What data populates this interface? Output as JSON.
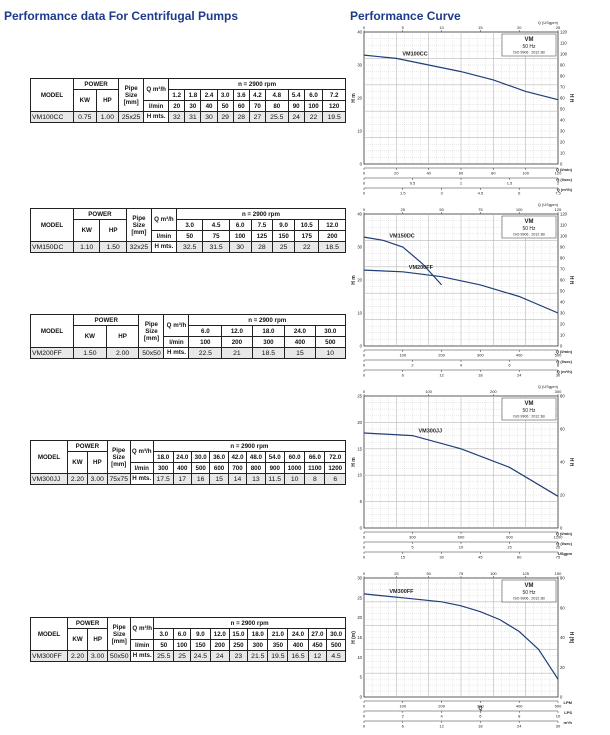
{
  "headings": {
    "left": "Performance data For Centrifugal Pumps",
    "right": "Performance Curve"
  },
  "tables": [
    {
      "header": {
        "model": "MODEL",
        "power": "POWER",
        "kw": "KW",
        "hp": "HP",
        "pipe": "Pipe Size [mm]",
        "q": "Q m³/h",
        "lmin": "l/min",
        "h": "H mts.",
        "rpm": "n = 2900 rpm"
      },
      "q_m3h": [
        "1.2",
        "1.8",
        "2.4",
        "3.0",
        "3.6",
        "4.2",
        "4.8",
        "5.4",
        "6.0",
        "7.2"
      ],
      "lmin": [
        "20",
        "30",
        "40",
        "50",
        "60",
        "70",
        "80",
        "90",
        "100",
        "120"
      ],
      "row": {
        "model": "VM100CC",
        "kw": "0.75",
        "hp": "1.00",
        "pipe": "25x25",
        "h": [
          "32",
          "31",
          "30",
          "29",
          "28",
          "27",
          "25.5",
          "24",
          "22",
          "19.5"
        ]
      }
    },
    {
      "header": {
        "model": "MODEL",
        "power": "POWER",
        "kw": "KW",
        "hp": "HP",
        "pipe": "Pipe Size [mm]",
        "q": "Q m³/h",
        "lmin": "l/min",
        "h": "H mts.",
        "rpm": "n = 2900 rpm"
      },
      "q_m3h": [
        "3.0",
        "4.5",
        "6.0",
        "7.5",
        "9.0",
        "10.5",
        "12.0"
      ],
      "lmin": [
        "50",
        "75",
        "100",
        "125",
        "150",
        "175",
        "200"
      ],
      "row": {
        "model": "VM150DC",
        "kw": "1.10",
        "hp": "1.50",
        "pipe": "32x25",
        "h": [
          "32.5",
          "31.5",
          "30",
          "28",
          "25",
          "22",
          "18.5"
        ]
      }
    },
    {
      "header": {
        "model": "MODEL",
        "power": "POWER",
        "kw": "KW",
        "hp": "HP",
        "pipe": "Pipe Size [mm]",
        "q": "Q m³/h",
        "lmin": "l/min",
        "h": "H mts.",
        "rpm": "n = 2900 rpm"
      },
      "q_m3h": [
        "6.0",
        "12.0",
        "18.0",
        "24.0",
        "30.0"
      ],
      "lmin": [
        "100",
        "200",
        "300",
        "400",
        "500"
      ],
      "row": {
        "model": "VM200FF",
        "kw": "1.50",
        "hp": "2.00",
        "pipe": "50x50",
        "h": [
          "22.5",
          "21",
          "18.5",
          "15",
          "10"
        ]
      }
    },
    {
      "header": {
        "model": "MODEL",
        "power": "POWER",
        "kw": "KW",
        "hp": "HP",
        "pipe": "Pipe Size [mm]",
        "q": "Q m³/h",
        "lmin": "l/min",
        "h": "H mts.",
        "rpm": "n = 2900 rpm"
      },
      "q_m3h": [
        "18.0",
        "24.0",
        "30.0",
        "36.0",
        "42.0",
        "48.0",
        "54.0",
        "60.0",
        "66.0",
        "72.0"
      ],
      "lmin": [
        "300",
        "400",
        "500",
        "600",
        "700",
        "800",
        "900",
        "1000",
        "1100",
        "1200"
      ],
      "row": {
        "model": "VM300JJ",
        "kw": "2.20",
        "hp": "3.00",
        "pipe": "75x75",
        "h": [
          "17.5",
          "17",
          "16",
          "15",
          "14",
          "13",
          "11.5",
          "10",
          "8",
          "6"
        ]
      }
    },
    {
      "header": {
        "model": "MODEL",
        "power": "POWER",
        "kw": "KW",
        "hp": "HP",
        "pipe": "Pipe Size [mm]",
        "q": "Q m³/h",
        "lmin": "l/min",
        "h": "H mts.",
        "rpm": "n = 2900 rpm"
      },
      "q_m3h": [
        "3.0",
        "6.0",
        "9.0",
        "12.0",
        "15.0",
        "18.0",
        "21.0",
        "24.0",
        "27.0",
        "30.0"
      ],
      "lmin": [
        "50",
        "100",
        "150",
        "200",
        "250",
        "300",
        "350",
        "400",
        "450",
        "500"
      ],
      "row": {
        "model": "VM300FF",
        "kw": "2.20",
        "hp": "3.00",
        "pipe": "50x50",
        "h": [
          "25.5",
          "25",
          "24.5",
          "24",
          "23",
          "21.5",
          "19.5",
          "16.5",
          "12",
          "4.5"
        ]
      }
    }
  ],
  "chart_data": [
    {
      "type": "line",
      "legend": {
        "brand": "VM",
        "hz": "50 Hz",
        "iso": "ISO 9906 : 2012 3B"
      },
      "ylabel": "H m",
      "ylabel_right": "H ft",
      "top_axis_label": "Q (USgpm)",
      "ylim": [
        0,
        40
      ],
      "xlim": [
        0,
        120
      ],
      "yticks": [
        "0",
        "10",
        "20",
        "30",
        "40"
      ],
      "yticks_right": [
        "0",
        "10",
        "20",
        "30",
        "40",
        "50",
        "60",
        "70",
        "80",
        "90",
        "100",
        "110",
        "120"
      ],
      "top_ticks": [
        "0",
        "5",
        "10",
        "15",
        "20",
        "25"
      ],
      "bottom_rows": [
        {
          "label": "Q (l/min)",
          "ticks": [
            "0",
            "20",
            "40",
            "60",
            "80",
            "100",
            "120"
          ]
        },
        {
          "label": "Q (l/sec)",
          "ticks": [
            "0",
            "0.5",
            "1",
            "1.5",
            "2"
          ]
        },
        {
          "label": "Q (m³/h)",
          "ticks": [
            "0",
            "1.5",
            "3",
            "4.5",
            "6",
            "7.5"
          ]
        }
      ],
      "series": [
        {
          "name": "VM100CC",
          "x": [
            0,
            20,
            40,
            60,
            80,
            100,
            120
          ],
          "y": [
            33,
            32,
            30,
            28,
            25.5,
            22,
            19.5
          ]
        }
      ]
    },
    {
      "type": "line",
      "legend": {
        "brand": "VM",
        "hz": "50 Hz",
        "iso": "ISO 9906 : 2012 3B"
      },
      "ylabel": "H m",
      "ylabel_right": "H ft",
      "top_axis_label": "Q (USgpm)",
      "ylim": [
        0,
        40
      ],
      "xlim": [
        0,
        500
      ],
      "yticks": [
        "0",
        "10",
        "20",
        "30",
        "40"
      ],
      "yticks_right": [
        "0",
        "10",
        "20",
        "30",
        "40",
        "50",
        "60",
        "70",
        "80",
        "90",
        "100",
        "110",
        "120"
      ],
      "top_ticks": [
        "0",
        "25",
        "50",
        "75",
        "100",
        "125"
      ],
      "bottom_rows": [
        {
          "label": "Q (l/min)",
          "ticks": [
            "0",
            "100",
            "200",
            "300",
            "400",
            "500"
          ]
        },
        {
          "label": "Q (l/sec)",
          "ticks": [
            "0",
            "2",
            "4",
            "6",
            "8"
          ]
        },
        {
          "label": "Q (m³/h)",
          "ticks": [
            "0",
            "6",
            "12",
            "18",
            "24",
            "30"
          ]
        }
      ],
      "series": [
        {
          "name": "VM150DC",
          "x": [
            0,
            50,
            100,
            150,
            200
          ],
          "y": [
            33,
            32,
            30,
            25,
            18.5
          ]
        },
        {
          "name": "VM200FF",
          "x": [
            0,
            100,
            200,
            300,
            400,
            500
          ],
          "y": [
            23,
            22.5,
            21,
            18.5,
            15,
            10
          ]
        }
      ]
    },
    {
      "type": "line",
      "legend": {
        "brand": "VM",
        "hz": "50 Hz",
        "iso": "ISO 9906 : 2012 3B"
      },
      "ylabel": "H m",
      "ylabel_right": "H ft",
      "top_axis_label": "Q (USgpm)",
      "ylim": [
        0,
        25
      ],
      "xlim": [
        0,
        1200
      ],
      "yticks": [
        "0",
        "5",
        "10",
        "15",
        "20",
        "25"
      ],
      "yticks_right": [
        "0",
        "20",
        "40",
        "60",
        "80"
      ],
      "top_ticks": [
        "0",
        "100",
        "200",
        "300"
      ],
      "bottom_rows": [
        {
          "label": "Q (l/min)",
          "ticks": [
            "0",
            "300",
            "600",
            "900",
            "1200"
          ]
        },
        {
          "label": "Q (l/sec)",
          "ticks": [
            "0",
            "5",
            "10",
            "15",
            "20"
          ]
        },
        {
          "label": "USgpm",
          "ticks": [
            "0",
            "15",
            "30",
            "45",
            "60",
            "75"
          ]
        }
      ],
      "series": [
        {
          "name": "VM300JJ",
          "x": [
            0,
            300,
            600,
            900,
            1200
          ],
          "y": [
            18,
            17.5,
            15,
            11.5,
            6
          ]
        }
      ]
    },
    {
      "type": "line",
      "legend": {
        "brand": "VM",
        "hz": "50 Hz",
        "iso": "ISO 9906 : 2012 3B"
      },
      "ylabel": "H (m)",
      "ylabel_right": "H (ft)",
      "top_axis_label": "",
      "ylim": [
        0,
        30
      ],
      "xlim": [
        0,
        500
      ],
      "yticks": [
        "0",
        "5",
        "10",
        "15",
        "20",
        "25",
        "30"
      ],
      "yticks_right": [
        "0",
        "20",
        "40",
        "60",
        "80"
      ],
      "top_ticks": [
        "0",
        "25",
        "50",
        "75",
        "100",
        "125",
        "150"
      ],
      "bottom_rows": [
        {
          "label": "LPM",
          "ticks": [
            "0",
            "100",
            "200",
            "300",
            "400",
            "500"
          ]
        },
        {
          "label": "LPS",
          "ticks": [
            "0",
            "2",
            "4",
            "6",
            "8",
            "10"
          ]
        },
        {
          "label": "m³/h",
          "ticks": [
            "0",
            "6",
            "12",
            "18",
            "24",
            "30"
          ]
        }
      ],
      "mid_axis_label": "Q",
      "series": [
        {
          "name": "VM300FF",
          "x": [
            0,
            50,
            100,
            150,
            200,
            250,
            300,
            350,
            400,
            450,
            500
          ],
          "y": [
            26,
            25.5,
            25,
            24.5,
            24,
            23,
            21.5,
            19.5,
            16.5,
            12,
            4.5
          ]
        }
      ]
    }
  ],
  "colors": {
    "heading": "#1e3a8a",
    "curve": "#1f3f7a",
    "grid": "#b9b9b9",
    "cell_fill": "#e8e8e8"
  }
}
